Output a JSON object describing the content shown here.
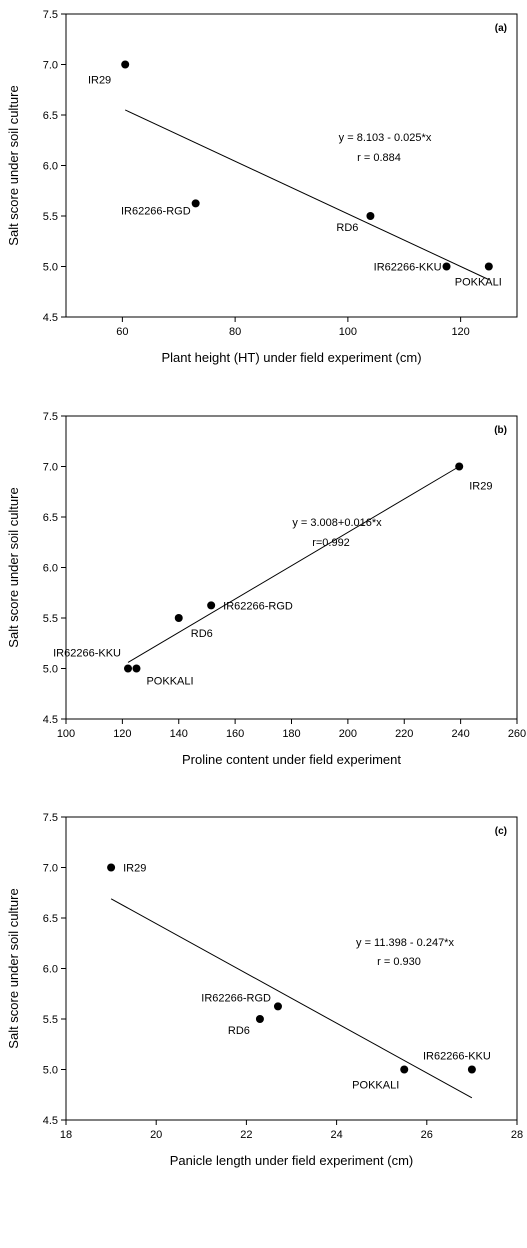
{
  "chart_data": [
    {
      "type": "scatter",
      "panel_label": "(a)",
      "xlabel": "Plant height (HT) under field experiment (cm)",
      "ylabel": "Salt score under soil culture",
      "xlim": [
        50,
        130
      ],
      "ylim": [
        4.5,
        7.5
      ],
      "xticks": [
        60,
        80,
        100,
        120
      ],
      "yticks": [
        4.5,
        5.0,
        5.5,
        6.0,
        6.5,
        7.0,
        7.5
      ],
      "points": [
        {
          "label": "IR29",
          "x": 60.5,
          "y": 7.0
        },
        {
          "label": "IR62266-RGD",
          "x": 73,
          "y": 5.625
        },
        {
          "label": "RD6",
          "x": 104,
          "y": 5.5
        },
        {
          "label": "IR62266-KKU",
          "x": 117.5,
          "y": 5.0
        },
        {
          "label": "POKKALI",
          "x": 125,
          "y": 5.0
        }
      ],
      "regression": {
        "x_range": [
          60.5,
          125
        ],
        "y_range": [
          6.55,
          4.87
        ]
      },
      "equation": "y = 8.103 - 0.025*x",
      "r_text": "r = 0.884",
      "grid": false
    },
    {
      "type": "scatter",
      "panel_label": "(b)",
      "xlabel": "Proline content under field experiment",
      "ylabel": "Salt score under soil culture",
      "xlim": [
        100,
        260
      ],
      "ylim": [
        4.5,
        7.5
      ],
      "xticks": [
        100,
        120,
        140,
        160,
        180,
        200,
        220,
        240,
        260
      ],
      "yticks": [
        4.5,
        5.0,
        5.5,
        6.0,
        6.5,
        7.0,
        7.5
      ],
      "points": [
        {
          "label": "IR29",
          "x": 239.5,
          "y": 7.0
        },
        {
          "label": "IR62266-RGD",
          "x": 151.5,
          "y": 5.625
        },
        {
          "label": "RD6",
          "x": 140,
          "y": 5.5
        },
        {
          "label": "IR62266-KKU",
          "x": 122,
          "y": 5.0
        },
        {
          "label": "POKKALI",
          "x": 125,
          "y": 5.0
        }
      ],
      "regression": {
        "x_range": [
          122,
          239.5
        ],
        "y_range": [
          5.06,
          7.0
        ]
      },
      "equation": "y = 3.008+0.016*x",
      "r_text": "r=0.992",
      "grid": false
    },
    {
      "type": "scatter",
      "panel_label": "(c)",
      "xlabel": "Panicle length under field experiment (cm)",
      "ylabel": "Salt score under soil culture",
      "xlim": [
        18,
        28
      ],
      "ylim": [
        4.5,
        7.5
      ],
      "xticks": [
        18,
        20,
        22,
        24,
        26,
        28
      ],
      "yticks": [
        4.5,
        5.0,
        5.5,
        6.0,
        6.5,
        7.0,
        7.5
      ],
      "points": [
        {
          "label": "IR29",
          "x": 19.0,
          "y": 7.0
        },
        {
          "label": "IR62266-RGD",
          "x": 22.7,
          "y": 5.625
        },
        {
          "label": "RD6",
          "x": 22.3,
          "y": 5.5
        },
        {
          "label": "POKKALI",
          "x": 25.5,
          "y": 5.0
        },
        {
          "label": "IR62266-KKU",
          "x": 27.0,
          "y": 5.0
        }
      ],
      "regression": {
        "x_range": [
          19.0,
          27.0
        ],
        "y_range": [
          6.69,
          4.72
        ]
      },
      "equation": "y = 11.398 - 0.247*x",
      "r_text": "r = 0.930",
      "grid": false
    }
  ]
}
